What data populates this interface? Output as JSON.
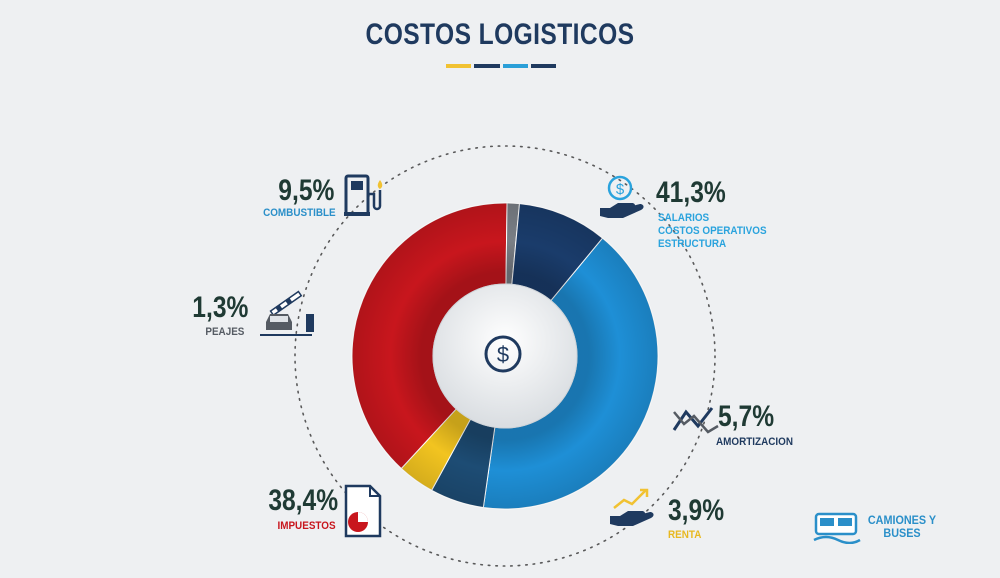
{
  "title": "COSTOS LOGISTICOS",
  "colors": {
    "background": "#eef0f2",
    "title": "#1f3a5f",
    "rule": [
      "#f1c232",
      "#1f3a5f",
      "#2a9fd8",
      "#1f3a5f"
    ]
  },
  "center_icon": "dollar-icon",
  "chart_data": {
    "type": "pie",
    "style": "donut",
    "slices": [
      {
        "label": "SALARIOS\nCOSTOS OPERATIVOS\nESTRUCTURA",
        "value": 41.3,
        "value_label": "41,3%",
        "color": "#1e8fd6",
        "label_color": "#2aa3dd",
        "icon": "salary-hand-icon"
      },
      {
        "label": "AMORTIZACION",
        "value": 5.7,
        "value_label": "5,7%",
        "color": "#1d4c74",
        "label_color": "#1f3a5f",
        "icon": "trend-chart-icon"
      },
      {
        "label": "RENTA",
        "value": 3.9,
        "value_label": "3,9%",
        "color": "#f2c420",
        "label_color": "#e8b820",
        "icon": "income-hand-icon"
      },
      {
        "label": "IMPUESTOS",
        "value": 38.4,
        "value_label": "38,4%",
        "color": "#c8161d",
        "label_color": "#c8161d",
        "icon": "tax-document-icon"
      },
      {
        "label": "PEAJES",
        "value": 1.3,
        "value_label": "1,3%",
        "color": "#7a7f86",
        "label_color": "#555b63",
        "icon": "toll-car-icon"
      },
      {
        "label": "COMBUSTIBLE",
        "value": 9.5,
        "value_label": "9,5%",
        "color": "#1a3c6b",
        "label_color": "#2a8fc9",
        "icon": "fuel-pump-icon"
      }
    ]
  },
  "labels": {
    "salarios": {
      "pct": "41,3%",
      "lines": [
        "SALARIOS",
        "COSTOS OPERATIVOS",
        "ESTRUCTURA"
      ]
    },
    "amortizacion": {
      "pct": "5,7%",
      "cat": "AMORTIZACION"
    },
    "renta": {
      "pct": "3,9%",
      "cat": "RENTA"
    },
    "impuestos": {
      "pct": "38,4%",
      "cat": "IMPUESTOS"
    },
    "peajes": {
      "pct": "1,3%",
      "cat": "PEAJES"
    },
    "combustible": {
      "pct": "9,5%",
      "cat": "COMBUSTIBLE"
    }
  },
  "brand": {
    "line1": "CAMIONES Y",
    "line2": "BUSES",
    "icon": "bus-logo-icon"
  }
}
